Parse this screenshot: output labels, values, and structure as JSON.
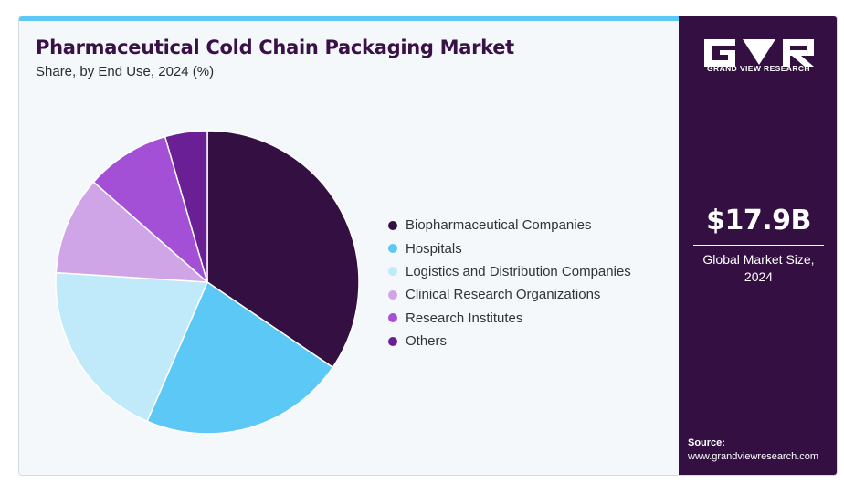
{
  "chart_data": {
    "type": "pie",
    "title": "Pharmaceutical Cold Chain Packaging Market",
    "subtitle": "Share, by End Use, 2024 (%)",
    "categories": [
      "Biopharmaceutical Companies",
      "Hospitals",
      "Logistics and Distribution Companies",
      "Clinical Research Organizations",
      "Research Institutes",
      "Others"
    ],
    "values": [
      34.5,
      22.0,
      19.5,
      10.5,
      9.0,
      4.5
    ],
    "colors": [
      "#341042",
      "#5bc8f5",
      "#c0e9fa",
      "#d0a5e8",
      "#a350d6",
      "#6a1f94"
    ],
    "legend_position": "right",
    "start_angle_deg": 0,
    "direction": "clockwise"
  },
  "sidebar": {
    "logo_text": "GRAND VIEW RESEARCH",
    "market_size_value": "$17.9B",
    "market_size_label_line1": "Global Market Size,",
    "market_size_label_line2": "2024",
    "source_label": "Source:",
    "source_url": "www.grandviewresearch.com"
  }
}
